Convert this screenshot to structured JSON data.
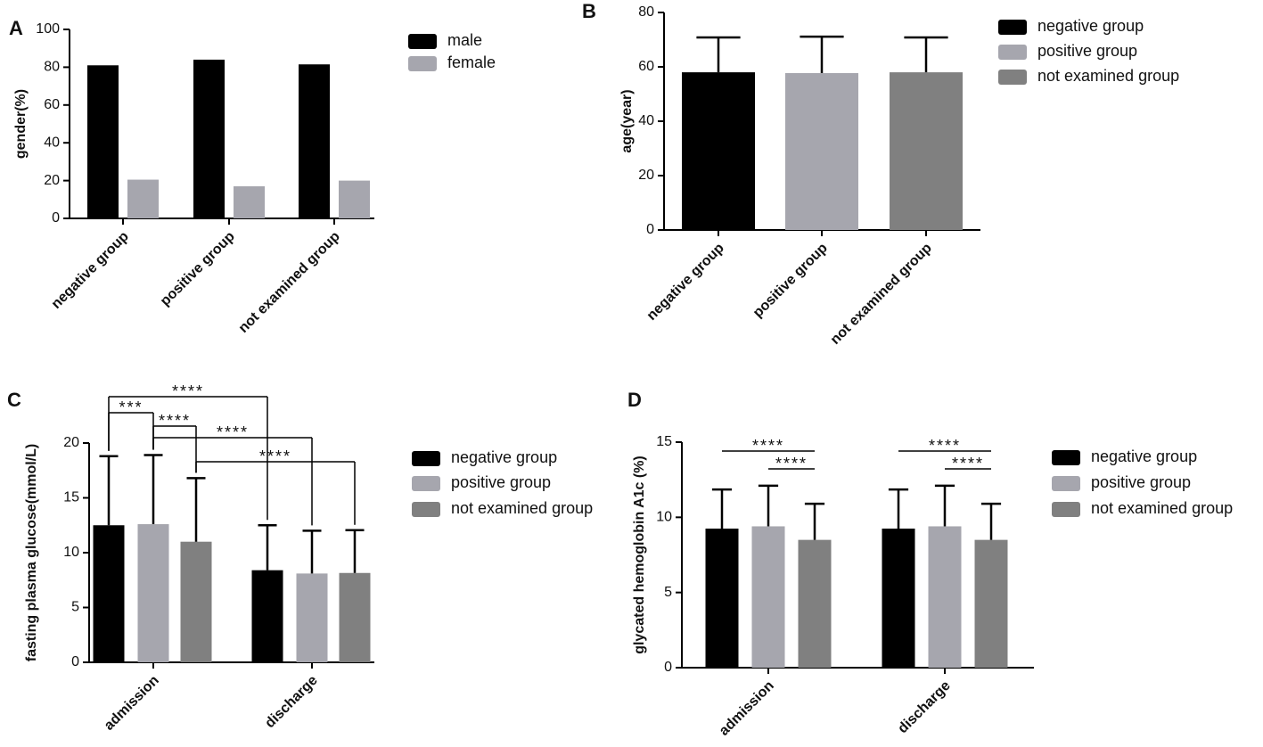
{
  "chart_data": [
    {
      "type": "bar",
      "panel": "A",
      "ylabel": "gender(%)",
      "categories": [
        "negative group",
        "positive group",
        "not examined group"
      ],
      "series": [
        {
          "name": "male",
          "color": "#000000",
          "values": [
            81,
            84,
            81.5
          ]
        },
        {
          "name": "female",
          "color": "#a6a6ae",
          "values": [
            20.5,
            17,
            20
          ]
        }
      ],
      "ylim": [
        0,
        100
      ],
      "yticks": [
        0,
        20,
        40,
        60,
        80,
        100
      ]
    },
    {
      "type": "bar",
      "panel": "B",
      "ylabel": "age(year)",
      "categories": [
        "negative group",
        "positive group",
        "not examined group"
      ],
      "values": [
        58,
        57.7,
        58
      ],
      "errors": [
        12.8,
        13.4,
        12.8
      ],
      "colors": [
        "#000000",
        "#a6a6ae",
        "#808080"
      ],
      "ylim": [
        0,
        80
      ],
      "yticks": [
        0,
        20,
        40,
        60,
        80
      ]
    },
    {
      "type": "bar",
      "panel": "C",
      "ylabel": "fasting plasma glucose(mmol/L)",
      "categories": [
        "admission",
        "discharge"
      ],
      "series": [
        {
          "name": "negative group",
          "color": "#000000",
          "values": [
            12.5,
            8.4
          ],
          "errors": [
            6.3,
            4.1
          ]
        },
        {
          "name": "positive group",
          "color": "#a6a6ae",
          "values": [
            12.6,
            8.1
          ],
          "errors": [
            6.3,
            3.9
          ]
        },
        {
          "name": "not examined group",
          "color": "#808080",
          "values": [
            11,
            8.15
          ],
          "errors": [
            5.8,
            3.9
          ]
        }
      ],
      "ylim": [
        0,
        20
      ],
      "yticks": [
        0,
        5,
        10,
        15,
        20
      ],
      "comparisons": [
        {
          "label": "****",
          "from": [
            0,
            0
          ],
          "to": [
            1,
            0
          ]
        },
        {
          "label": "***",
          "from": [
            0,
            0
          ],
          "to": [
            0,
            1
          ]
        },
        {
          "label": "****",
          "from": [
            0,
            1
          ],
          "to": [
            0,
            2
          ]
        },
        {
          "label": "****",
          "from": [
            0,
            1
          ],
          "to": [
            1,
            1
          ]
        },
        {
          "label": "****",
          "from": [
            0,
            2
          ],
          "to": [
            1,
            2
          ]
        }
      ]
    },
    {
      "type": "bar",
      "panel": "D",
      "ylabel": "glycated hemoglobin A1c (%)",
      "categories": [
        "admission",
        "discharge"
      ],
      "series": [
        {
          "name": "negative group",
          "color": "#000000",
          "values": [
            9.25,
            9.25
          ],
          "errors": [
            2.6,
            2.6
          ]
        },
        {
          "name": "positive group",
          "color": "#a6a6ae",
          "values": [
            9.4,
            9.4
          ],
          "errors": [
            2.7,
            2.7
          ]
        },
        {
          "name": "not examined group",
          "color": "#808080",
          "values": [
            8.5,
            8.5
          ],
          "errors": [
            2.4,
            2.4
          ]
        }
      ],
      "ylim": [
        0,
        15
      ],
      "yticks": [
        0,
        5,
        10,
        15
      ],
      "comparisons": [
        {
          "label": "****",
          "from": [
            0,
            0
          ],
          "to": [
            0,
            2
          ]
        },
        {
          "label": "****",
          "from": [
            0,
            1
          ],
          "to": [
            0,
            2
          ]
        },
        {
          "label": "****",
          "from": [
            1,
            0
          ],
          "to": [
            1,
            2
          ]
        },
        {
          "label": "****",
          "from": [
            1,
            1
          ],
          "to": [
            1,
            2
          ]
        }
      ]
    }
  ]
}
